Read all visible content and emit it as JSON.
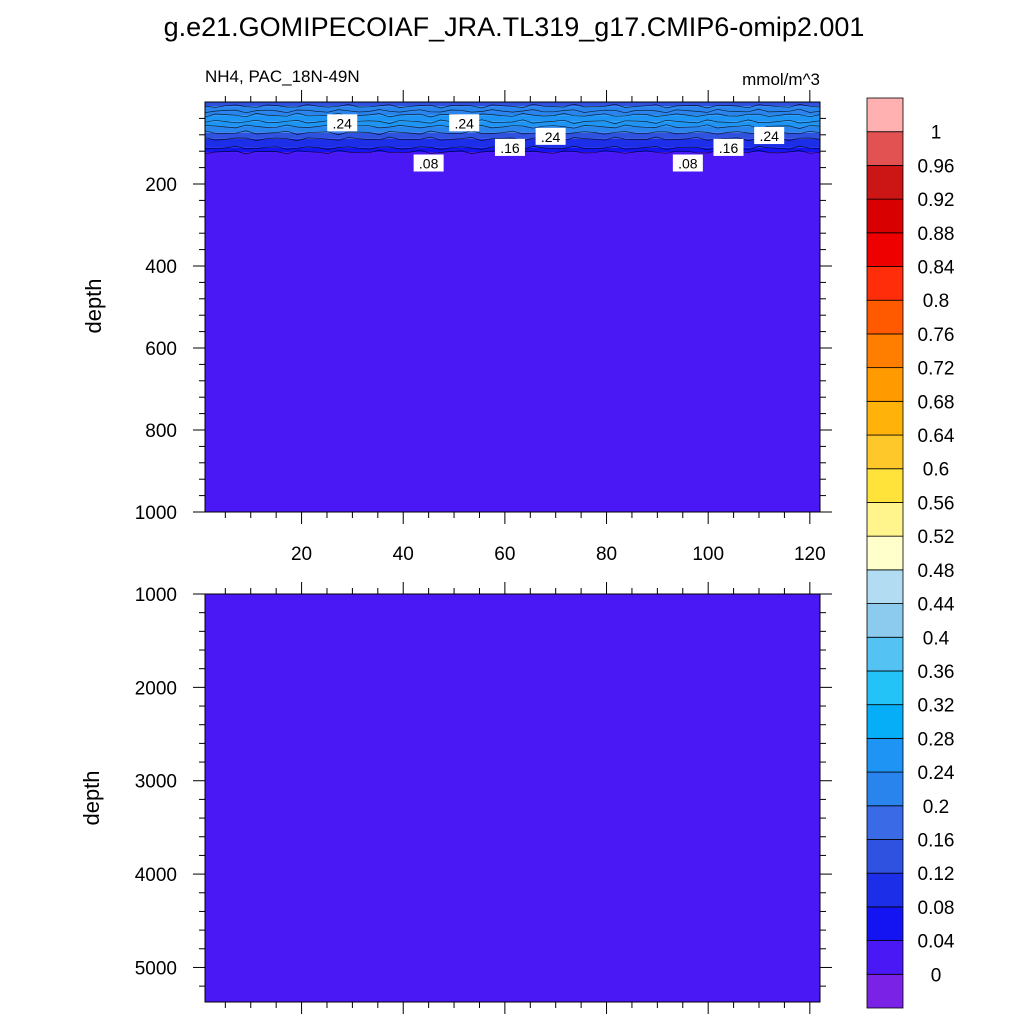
{
  "chart_data": {
    "type": "heatmap",
    "title": "g.e21.GOMIPECOIAF_JRA.TL319_g17.CMIP6-omip2.001",
    "subtitle_left": "NH4, PAC_18N-49N",
    "subtitle_right": "mmol/m^3",
    "ylabel": "depth",
    "colorbar": {
      "levels": [
        0,
        0.04,
        0.08,
        0.12,
        0.16,
        0.2,
        0.24,
        0.28,
        0.32,
        0.36,
        0.4,
        0.44,
        0.48,
        0.52,
        0.56,
        0.6,
        0.64,
        0.68,
        0.72,
        0.76,
        0.8,
        0.84,
        0.88,
        0.92,
        0.96,
        1
      ],
      "level_labels": [
        "0",
        "0.04",
        "0.08",
        "0.12",
        "0.16",
        "0.2",
        "0.24",
        "0.28",
        "0.32",
        "0.36",
        "0.4",
        "0.44",
        "0.48",
        "0.52",
        "0.56",
        "0.6",
        "0.64",
        "0.68",
        "0.72",
        "0.76",
        "0.8",
        "0.84",
        "0.88",
        "0.92",
        "0.96",
        "1"
      ],
      "colors": [
        "#7a23e6",
        "#4a17f5",
        "#1414f2",
        "#1c2ee8",
        "#2f52e0",
        "#3a6ae6",
        "#2a84ee",
        "#1e95f4",
        "#06aef7",
        "#23c3f7",
        "#54c2f2",
        "#8ccaee",
        "#b2dcf2",
        "#ffffcc",
        "#fff58c",
        "#ffe23a",
        "#ffc82a",
        "#ffb20a",
        "#ff9a00",
        "#ff7e00",
        "#ff5a00",
        "#ff2d0a",
        "#ef0000",
        "#d80000",
        "#cc1616",
        "#e35252",
        "#ffb0b0"
      ]
    },
    "panels": [
      {
        "xlim": [
          1,
          122
        ],
        "x_ticks": [
          20,
          40,
          60,
          80,
          100,
          120
        ],
        "ylim": [
          0,
          1000
        ],
        "y_ticks": [
          200,
          400,
          600,
          800,
          1000
        ],
        "fill_bands": [
          {
            "depth_top": 0,
            "depth_bottom": 10,
            "value": 0.14
          },
          {
            "depth_top": 10,
            "depth_bottom": 22,
            "value": 0.2
          },
          {
            "depth_top": 22,
            "depth_bottom": 32,
            "value": 0.22
          },
          {
            "depth_top": 32,
            "depth_bottom": 48,
            "value": 0.26
          },
          {
            "depth_top": 48,
            "depth_bottom": 60,
            "value": 0.24
          },
          {
            "depth_top": 60,
            "depth_bottom": 75,
            "value": 0.2
          },
          {
            "depth_top": 75,
            "depth_bottom": 90,
            "value": 0.14
          },
          {
            "depth_top": 90,
            "depth_bottom": 112,
            "value": 0.1
          },
          {
            "depth_top": 112,
            "depth_bottom": 122,
            "value": 0.06
          },
          {
            "depth_top": 122,
            "depth_bottom": 1000,
            "value": 0.02
          }
        ],
        "contour_depths": [
          10,
          22,
          32,
          48,
          60,
          75,
          90,
          112,
          122
        ],
        "contour_labels": [
          {
            "x": 28,
            "depth": 52,
            "text": ".24"
          },
          {
            "x": 52,
            "depth": 52,
            "text": ".24"
          },
          {
            "x": 69,
            "depth": 85,
            "text": ".24"
          },
          {
            "x": 112,
            "depth": 83,
            "text": ".24"
          },
          {
            "x": 61,
            "depth": 112,
            "text": ".16"
          },
          {
            "x": 104,
            "depth": 112,
            "text": ".16"
          },
          {
            "x": 45,
            "depth": 150,
            "text": ".08"
          },
          {
            "x": 96,
            "depth": 150,
            "text": ".08"
          }
        ]
      },
      {
        "xlim": [
          1,
          122
        ],
        "x_ticks": [
          20,
          40,
          60,
          80,
          100,
          120
        ],
        "ylim": [
          1000,
          5370
        ],
        "y_ticks": [
          1000,
          2000,
          3000,
          4000,
          5000
        ],
        "fill_bands": [
          {
            "depth_top": 1000,
            "depth_bottom": 5370,
            "value": 0.02
          }
        ],
        "contour_depths": [],
        "contour_labels": []
      }
    ]
  }
}
